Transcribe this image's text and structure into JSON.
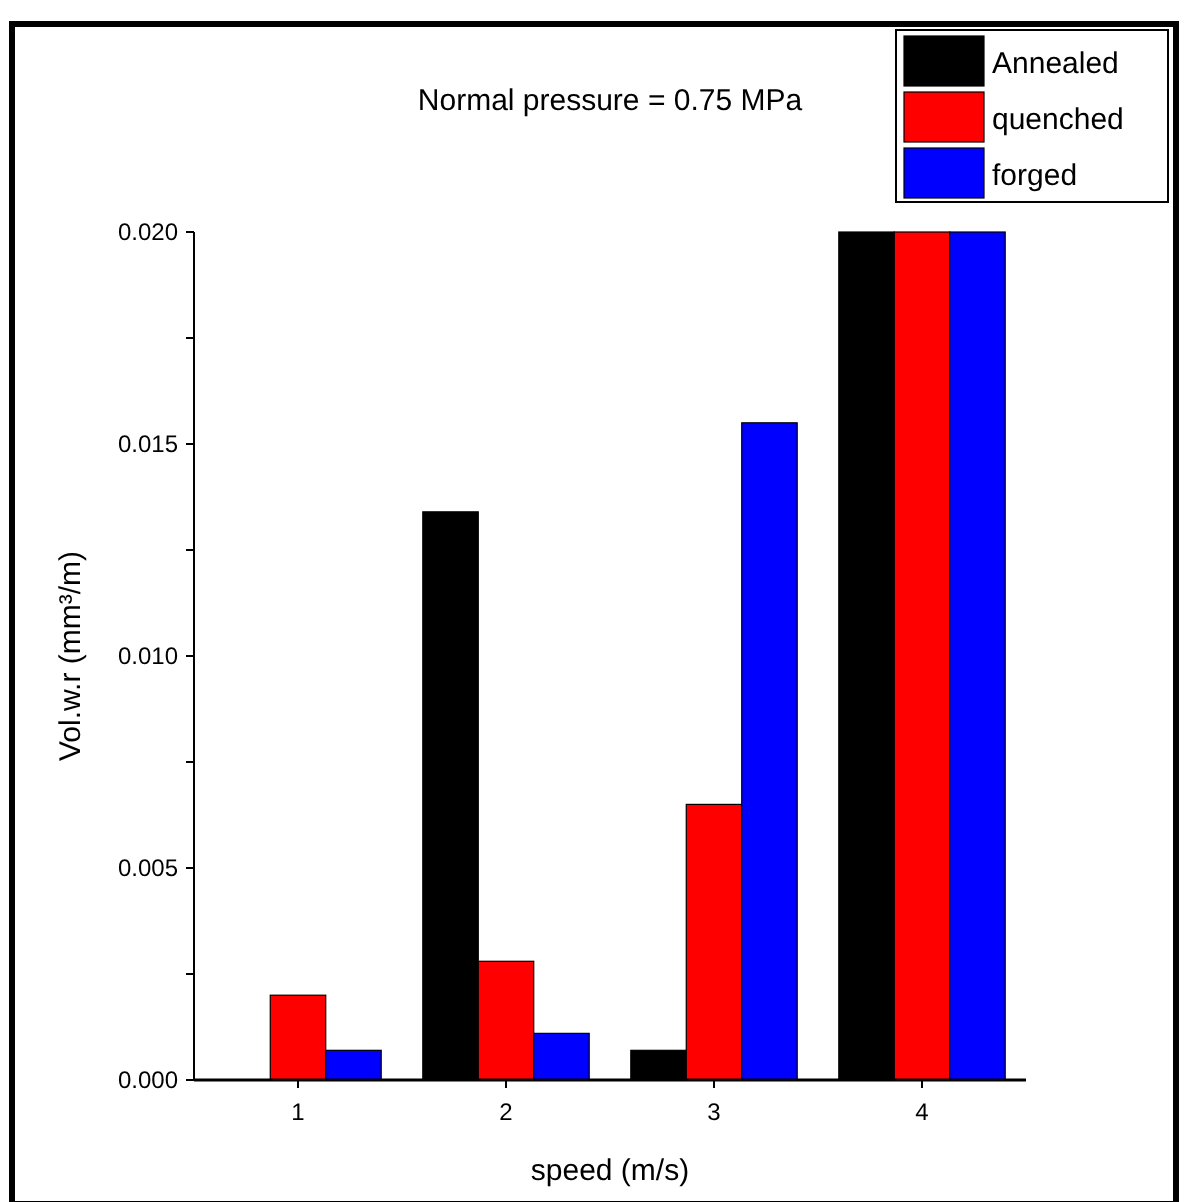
{
  "chart_data": {
    "type": "bar",
    "title": "Normal pressure = 0.75 MPa",
    "xlabel": "speed (m/s)",
    "ylabel": "Vol.w.r (mm³/m)",
    "categories": [
      "1",
      "2",
      "3",
      "4"
    ],
    "series": [
      {
        "name": "Annealed",
        "color": "#000000",
        "values": [
          0,
          0.0134,
          0.0007,
          0.02
        ]
      },
      {
        "name": "quenched",
        "color": "#ff0000",
        "values": [
          0.002,
          0.0028,
          0.0065,
          0.02
        ]
      },
      {
        "name": "forged",
        "color": "#0000ff",
        "values": [
          0.0007,
          0.0011,
          0.0155,
          0.02
        ]
      }
    ],
    "ylim": [
      0,
      0.02
    ],
    "yticks": [
      {
        "value": 0,
        "label": "0.000"
      },
      {
        "value": 0.0025,
        "label": null
      },
      {
        "value": 0.005,
        "label": "0.005"
      },
      {
        "value": 0.0075,
        "label": null
      },
      {
        "value": 0.01,
        "label": "0.010"
      },
      {
        "value": 0.0125,
        "label": null
      },
      {
        "value": 0.015,
        "label": "0.015"
      },
      {
        "value": 0.0175,
        "label": null
      },
      {
        "value": 0.02,
        "label": "0.020"
      }
    ],
    "grid": false,
    "legend": "top right"
  }
}
